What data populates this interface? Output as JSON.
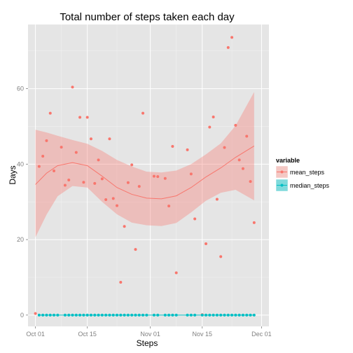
{
  "chart_data": {
    "type": "scatter",
    "title": "Total number of steps taken each day",
    "xlabel": "Steps",
    "ylabel": "Days",
    "x_ticks": [
      "Oct 01",
      "Oct 15",
      "Nov 01",
      "Nov 15",
      "Dec 01"
    ],
    "y_ticks": [
      0,
      20,
      40,
      60
    ],
    "xlim": [
      "2012-09-29",
      "2012-12-03"
    ],
    "ylim": [
      -3,
      77
    ],
    "grid": true,
    "legend": {
      "title": "variable",
      "position": "right",
      "entries": [
        "mean_steps",
        "median_steps"
      ]
    },
    "series": [
      {
        "name": "mean_steps",
        "color": "#F8766D",
        "points": [
          [
            "2012-10-01",
            0.4
          ],
          [
            "2012-10-02",
            39.4
          ],
          [
            "2012-10-03",
            42.1
          ],
          [
            "2012-10-04",
            46.2
          ],
          [
            "2012-10-05",
            53.5
          ],
          [
            "2012-10-06",
            38.2
          ],
          [
            "2012-10-08",
            44.5
          ],
          [
            "2012-10-09",
            34.4
          ],
          [
            "2012-10-10",
            35.8
          ],
          [
            "2012-10-11",
            60.4
          ],
          [
            "2012-10-12",
            43.1
          ],
          [
            "2012-10-13",
            52.4
          ],
          [
            "2012-10-14",
            35.2
          ],
          [
            "2012-10-15",
            52.4
          ],
          [
            "2012-10-16",
            46.7
          ],
          [
            "2012-10-17",
            34.9
          ],
          [
            "2012-10-18",
            41.1
          ],
          [
            "2012-10-19",
            36.1
          ],
          [
            "2012-10-20",
            30.6
          ],
          [
            "2012-10-21",
            46.7
          ],
          [
            "2012-10-22",
            30.9
          ],
          [
            "2012-10-23",
            29.0
          ],
          [
            "2012-10-24",
            8.7
          ],
          [
            "2012-10-25",
            23.5
          ],
          [
            "2012-10-26",
            35.1
          ],
          [
            "2012-10-27",
            39.8
          ],
          [
            "2012-10-28",
            17.4
          ],
          [
            "2012-10-29",
            34.1
          ],
          [
            "2012-10-30",
            53.5
          ],
          [
            "2012-11-02",
            36.8
          ],
          [
            "2012-11-03",
            36.7
          ],
          [
            "2012-11-05",
            36.2
          ],
          [
            "2012-11-06",
            28.9
          ],
          [
            "2012-11-07",
            44.7
          ],
          [
            "2012-11-08",
            11.2
          ],
          [
            "2012-11-11",
            43.8
          ],
          [
            "2012-11-12",
            37.4
          ],
          [
            "2012-11-13",
            25.5
          ],
          [
            "2012-11-15",
            0.1
          ],
          [
            "2012-11-16",
            18.9
          ],
          [
            "2012-11-17",
            49.8
          ],
          [
            "2012-11-18",
            52.5
          ],
          [
            "2012-11-19",
            30.7
          ],
          [
            "2012-11-20",
            15.5
          ],
          [
            "2012-11-21",
            44.4
          ],
          [
            "2012-11-22",
            70.9
          ],
          [
            "2012-11-23",
            73.6
          ],
          [
            "2012-11-24",
            50.3
          ],
          [
            "2012-11-25",
            41.1
          ],
          [
            "2012-11-26",
            38.8
          ],
          [
            "2012-11-27",
            47.4
          ],
          [
            "2012-11-28",
            35.4
          ],
          [
            "2012-11-29",
            24.5
          ]
        ]
      },
      {
        "name": "median_steps",
        "color": "#00BFC4",
        "points": [
          [
            "2012-10-02",
            0
          ],
          [
            "2012-10-03",
            0
          ],
          [
            "2012-10-04",
            0
          ],
          [
            "2012-10-05",
            0
          ],
          [
            "2012-10-06",
            0
          ],
          [
            "2012-10-07",
            0
          ],
          [
            "2012-10-09",
            0
          ],
          [
            "2012-10-10",
            0
          ],
          [
            "2012-10-11",
            0
          ],
          [
            "2012-10-12",
            0
          ],
          [
            "2012-10-13",
            0
          ],
          [
            "2012-10-14",
            0
          ],
          [
            "2012-10-15",
            0
          ],
          [
            "2012-10-16",
            0
          ],
          [
            "2012-10-17",
            0
          ],
          [
            "2012-10-18",
            0
          ],
          [
            "2012-10-19",
            0
          ],
          [
            "2012-10-20",
            0
          ],
          [
            "2012-10-21",
            0
          ],
          [
            "2012-10-22",
            0
          ],
          [
            "2012-10-23",
            0
          ],
          [
            "2012-10-24",
            0
          ],
          [
            "2012-10-25",
            0
          ],
          [
            "2012-10-26",
            0
          ],
          [
            "2012-10-27",
            0
          ],
          [
            "2012-10-28",
            0
          ],
          [
            "2012-10-29",
            0
          ],
          [
            "2012-10-30",
            0
          ],
          [
            "2012-10-31",
            0
          ],
          [
            "2012-11-02",
            0
          ],
          [
            "2012-11-03",
            0
          ],
          [
            "2012-11-05",
            0
          ],
          [
            "2012-11-06",
            0
          ],
          [
            "2012-11-07",
            0
          ],
          [
            "2012-11-08",
            0
          ],
          [
            "2012-11-11",
            0
          ],
          [
            "2012-11-12",
            0
          ],
          [
            "2012-11-13",
            0
          ],
          [
            "2012-11-15",
            0
          ],
          [
            "2012-11-16",
            0
          ],
          [
            "2012-11-17",
            0
          ],
          [
            "2012-11-18",
            0
          ],
          [
            "2012-11-19",
            0
          ],
          [
            "2012-11-20",
            0
          ],
          [
            "2012-11-21",
            0
          ],
          [
            "2012-11-22",
            0
          ],
          [
            "2012-11-23",
            0
          ],
          [
            "2012-11-24",
            0
          ],
          [
            "2012-11-25",
            0
          ],
          [
            "2012-11-26",
            0
          ],
          [
            "2012-11-27",
            0
          ],
          [
            "2012-11-28",
            0
          ],
          [
            "2012-11-29",
            0
          ]
        ]
      }
    ],
    "smooth": {
      "series": "mean_steps",
      "fit": [
        [
          "2012-10-01",
          34.6
        ],
        [
          "2012-10-04",
          37.6
        ],
        [
          "2012-10-07",
          39.6
        ],
        [
          "2012-10-11",
          40.4
        ],
        [
          "2012-10-15",
          39.6
        ],
        [
          "2012-10-19",
          36.8
        ],
        [
          "2012-10-23",
          33.8
        ],
        [
          "2012-10-27",
          32.0
        ],
        [
          "2012-10-31",
          31.0
        ],
        [
          "2012-11-04",
          30.8
        ],
        [
          "2012-11-08",
          31.6
        ],
        [
          "2012-11-12",
          33.8
        ],
        [
          "2012-11-16",
          36.6
        ],
        [
          "2012-11-20",
          39.0
        ],
        [
          "2012-11-24",
          41.8
        ],
        [
          "2012-11-29",
          44.8
        ]
      ],
      "upper": [
        [
          "2012-10-01",
          49.1
        ],
        [
          "2012-10-04",
          48.4
        ],
        [
          "2012-10-07",
          47.5
        ],
        [
          "2012-10-11",
          46.4
        ],
        [
          "2012-10-15",
          45.4
        ],
        [
          "2012-10-19",
          43.5
        ],
        [
          "2012-10-23",
          41.1
        ],
        [
          "2012-10-27",
          39.4
        ],
        [
          "2012-10-31",
          38.0
        ],
        [
          "2012-11-04",
          37.8
        ],
        [
          "2012-11-08",
          38.3
        ],
        [
          "2012-11-12",
          40.0
        ],
        [
          "2012-11-16",
          42.6
        ],
        [
          "2012-11-20",
          45.5
        ],
        [
          "2012-11-24",
          50.2
        ],
        [
          "2012-11-29",
          59.1
        ]
      ],
      "lower": [
        [
          "2012-10-01",
          20.6
        ],
        [
          "2012-10-04",
          26.6
        ],
        [
          "2012-10-07",
          31.5
        ],
        [
          "2012-10-11",
          34.2
        ],
        [
          "2012-10-15",
          33.8
        ],
        [
          "2012-10-19",
          30.0
        ],
        [
          "2012-10-23",
          26.7
        ],
        [
          "2012-10-27",
          24.5
        ],
        [
          "2012-10-31",
          23.8
        ],
        [
          "2012-11-04",
          23.6
        ],
        [
          "2012-11-08",
          24.4
        ],
        [
          "2012-11-12",
          27.2
        ],
        [
          "2012-11-16",
          30.3
        ],
        [
          "2012-11-20",
          32.4
        ],
        [
          "2012-11-24",
          33.2
        ],
        [
          "2012-11-29",
          30.4
        ]
      ]
    }
  }
}
